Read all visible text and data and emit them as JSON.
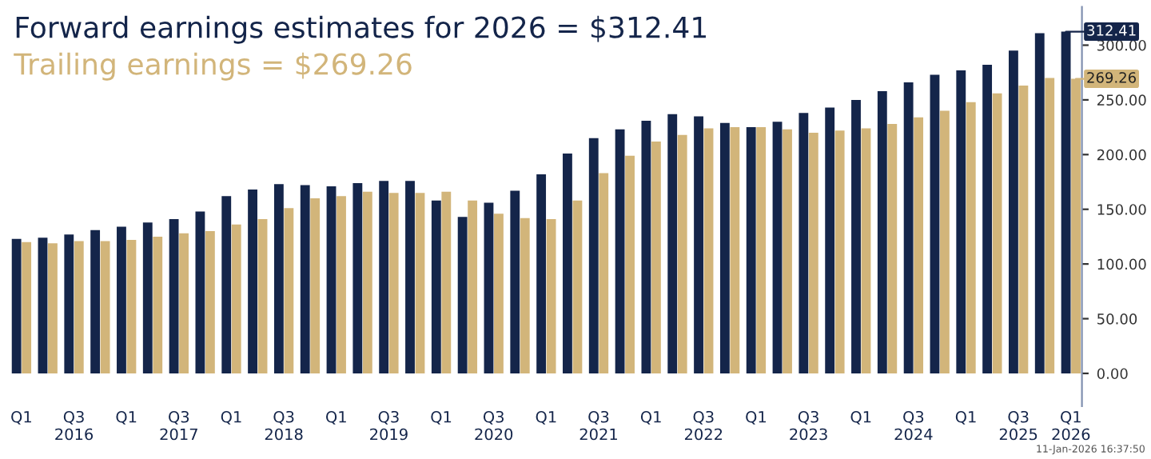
{
  "chart_data": {
    "type": "bar",
    "title": "Forward earnings estimates for 2026 = $312.41",
    "subtitle": "Trailing earnings = $269.26",
    "categories": [
      "Q1",
      null,
      "Q3\n2016",
      null,
      "Q1",
      null,
      "Q3\n2017",
      null,
      "Q1",
      null,
      "Q3\n2018",
      null,
      "Q1",
      null,
      "Q3\n2019",
      null,
      "Q1",
      null,
      "Q3\n2020",
      null,
      "Q1",
      null,
      "Q3\n2021",
      null,
      "Q1",
      null,
      "Q3\n2022",
      null,
      "Q1",
      null,
      "Q3\n2023",
      null,
      "Q1",
      null,
      "Q3\n2024",
      null,
      "Q1",
      null,
      "Q3\n2025",
      null,
      "Q1\n2026"
    ],
    "series": [
      {
        "color": "#14254a",
        "values": [
          123,
          124,
          127,
          131,
          134,
          138,
          141,
          148,
          162,
          168,
          173,
          172,
          171,
          174,
          176,
          176,
          158,
          143,
          156,
          167,
          182,
          201,
          215,
          223,
          231,
          237,
          235,
          229,
          225,
          230,
          238,
          243,
          250,
          258,
          266,
          273,
          277,
          282,
          295,
          311,
          312.41
        ]
      },
      {
        "color": "#d2b57a",
        "values": [
          120,
          119,
          121,
          121,
          122,
          125,
          128,
          130,
          136,
          141,
          151,
          160,
          162,
          166,
          165,
          165,
          166,
          158,
          146,
          142,
          141,
          158,
          183,
          199,
          212,
          218,
          224,
          225,
          225,
          223,
          220,
          222,
          224,
          228,
          234,
          240,
          248,
          256,
          263,
          270,
          269.26
        ]
      }
    ],
    "ylim": [
      -30,
      335
    ],
    "yticks": [
      {
        "value": 0,
        "label": "0.00"
      },
      {
        "value": 50,
        "label": "50.00"
      },
      {
        "value": 100,
        "label": "100.00"
      },
      {
        "value": 150,
        "label": "150.00"
      },
      {
        "value": 200,
        "label": "200.00"
      },
      {
        "value": 250,
        "label": "250.00"
      },
      {
        "value": 300,
        "label": "300.00"
      }
    ],
    "annotations": [
      {
        "text": "312.41",
        "x": "Q1\n2026",
        "y": 312.41
      },
      {
        "text": "269.26",
        "x": "Q1\n2026",
        "y": 269.26
      },
      "11-Jan-2026 16:37:50"
    ]
  }
}
